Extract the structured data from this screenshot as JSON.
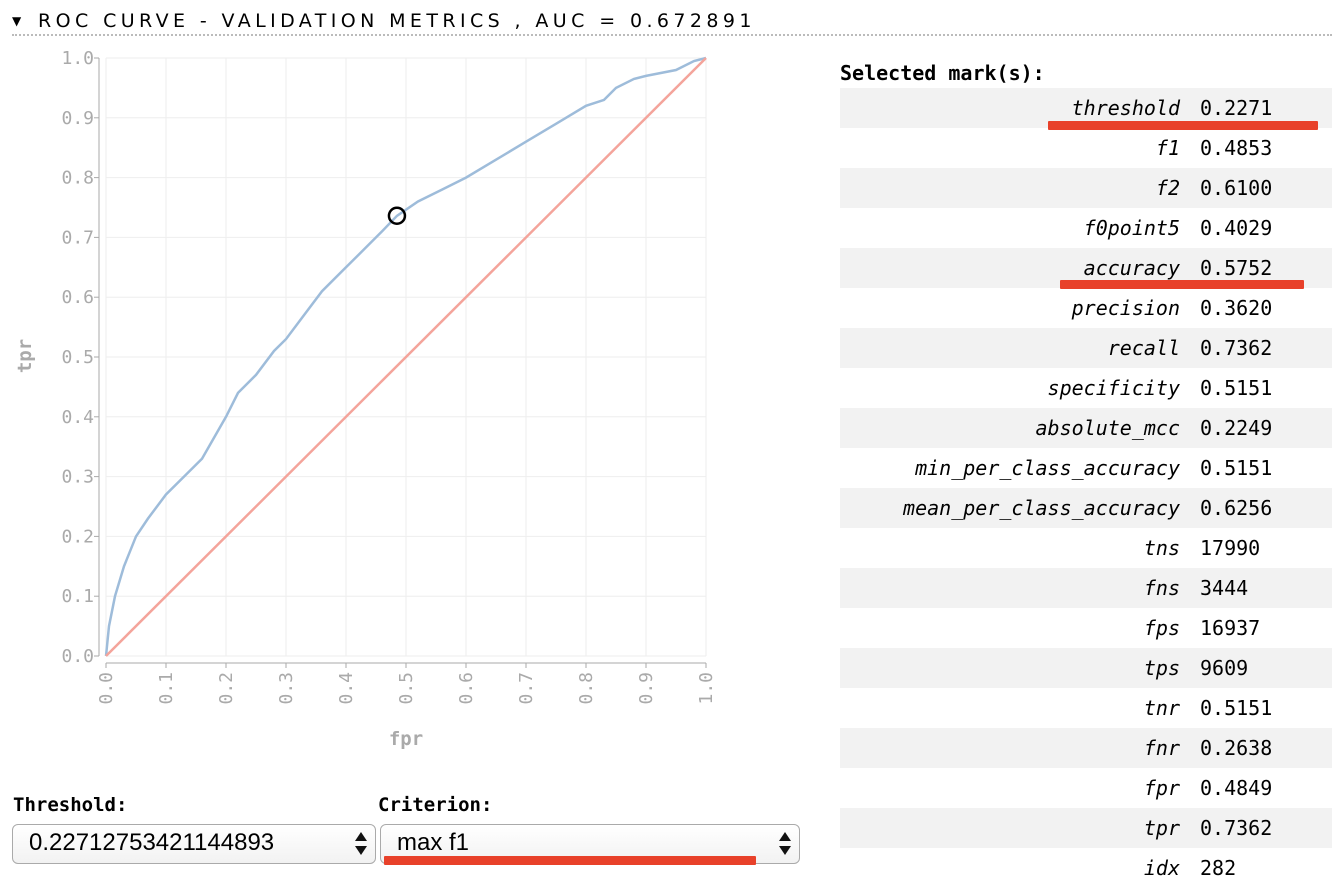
{
  "header": {
    "title": "ROC CURVE - VALIDATION METRICS , AUC = 0.672891",
    "collapse_icon": "triangle-down-icon"
  },
  "chart_data": {
    "type": "line",
    "xlabel": "fpr",
    "ylabel": "tpr",
    "xlim": [
      0,
      1
    ],
    "ylim": [
      0,
      1
    ],
    "grid": true,
    "xticks": [
      "0.0",
      "0.1",
      "0.2",
      "0.3",
      "0.4",
      "0.5",
      "0.6",
      "0.7",
      "0.8",
      "0.9",
      "1.0"
    ],
    "yticks": [
      "0.0",
      "0.1",
      "0.2",
      "0.3",
      "0.4",
      "0.5",
      "0.6",
      "0.7",
      "0.8",
      "0.9",
      "1.0"
    ],
    "series": [
      {
        "color": "#9ebcda",
        "x": [
          0.0,
          0.005,
          0.015,
          0.03,
          0.05,
          0.07,
          0.1,
          0.13,
          0.16,
          0.2,
          0.22,
          0.25,
          0.28,
          0.3,
          0.33,
          0.36,
          0.4,
          0.43,
          0.46,
          0.485,
          0.52,
          0.56,
          0.6,
          0.65,
          0.7,
          0.75,
          0.8,
          0.83,
          0.85,
          0.88,
          0.9,
          0.95,
          0.98,
          1.0
        ],
        "y": [
          0.0,
          0.05,
          0.1,
          0.15,
          0.2,
          0.23,
          0.27,
          0.3,
          0.33,
          0.4,
          0.44,
          0.47,
          0.51,
          0.53,
          0.57,
          0.61,
          0.65,
          0.68,
          0.71,
          0.7362,
          0.76,
          0.78,
          0.8,
          0.83,
          0.86,
          0.89,
          0.92,
          0.93,
          0.95,
          0.965,
          0.97,
          0.98,
          0.995,
          1.0
        ]
      },
      {
        "color": "#f4a49b",
        "x": [
          0,
          1
        ],
        "y": [
          0,
          1
        ]
      }
    ],
    "selected_point": {
      "x": 0.4849,
      "y": 0.7362
    }
  },
  "metrics": {
    "title": "Selected mark(s):",
    "rows": [
      {
        "name": "threshold",
        "value": "0.2271"
      },
      {
        "name": "f1",
        "value": "0.4853"
      },
      {
        "name": "f2",
        "value": "0.6100"
      },
      {
        "name": "f0point5",
        "value": "0.4029"
      },
      {
        "name": "accuracy",
        "value": "0.5752"
      },
      {
        "name": "precision",
        "value": "0.3620"
      },
      {
        "name": "recall",
        "value": "0.7362"
      },
      {
        "name": "specificity",
        "value": "0.5151"
      },
      {
        "name": "absolute_mcc",
        "value": "0.2249"
      },
      {
        "name": "min_per_class_accuracy",
        "value": "0.5151"
      },
      {
        "name": "mean_per_class_accuracy",
        "value": "0.6256"
      },
      {
        "name": "tns",
        "value": "17990"
      },
      {
        "name": "fns",
        "value": "3444"
      },
      {
        "name": "fps",
        "value": "16937"
      },
      {
        "name": "tps",
        "value": "9609"
      },
      {
        "name": "tnr",
        "value": "0.5151"
      },
      {
        "name": "fnr",
        "value": "0.2638"
      },
      {
        "name": "fpr",
        "value": "0.4849"
      },
      {
        "name": "tpr",
        "value": "0.7362"
      },
      {
        "name": "idx",
        "value": "282"
      }
    ]
  },
  "controls": {
    "threshold_label": "Threshold:",
    "threshold_value": "0.22712753421144893",
    "criterion_label": "Criterion:",
    "criterion_value": "max f1"
  },
  "colors": {
    "highlight": "#e8412a",
    "roc_line": "#9ebcda",
    "diagonal": "#f4a49b",
    "grid": "#eeeeee",
    "axis_text": "#aaaaaa"
  }
}
